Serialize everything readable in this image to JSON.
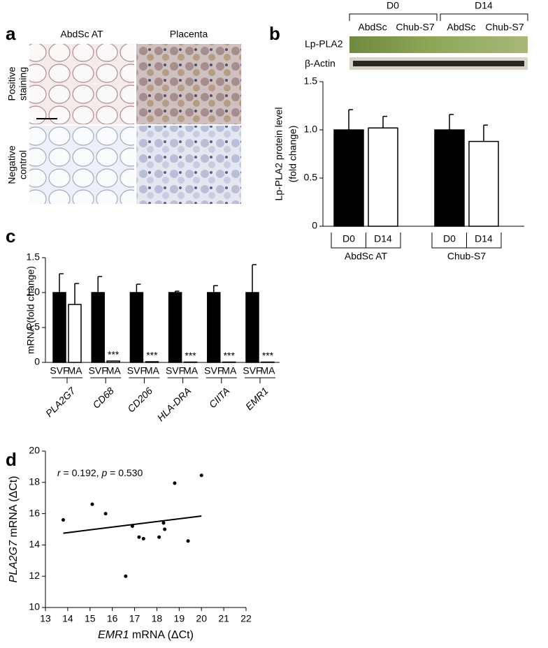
{
  "panels": {
    "letters": [
      "a",
      "b",
      "c",
      "d"
    ],
    "histology": {
      "col_labels": [
        "AbdSc AT",
        "Placenta"
      ],
      "row_labels": [
        [
          "Positive",
          "staining"
        ],
        [
          "Negative",
          "control"
        ]
      ]
    },
    "blot": {
      "day_labels": [
        "D0",
        "D14"
      ],
      "lane_labels": [
        "AbdSc",
        "Chub-S7",
        "AbdSc",
        "Chub-S7"
      ],
      "band_labels": [
        "Lp-PLA2",
        "β-Actin"
      ]
    }
  },
  "chart_data": [
    {
      "type": "bar",
      "ylabel": [
        "Lp-PLA2 protein level",
        "(fold change)"
      ],
      "categories": [
        "D0",
        "D14",
        "D0",
        "D14"
      ],
      "groups": [
        "AbdSc AT",
        "Chub-S7"
      ],
      "values": [
        1.0,
        1.02,
        1.0,
        0.88
      ],
      "errors": [
        0.21,
        0.12,
        0.16,
        0.17
      ],
      "colors": [
        "#000000",
        "#ffffff",
        "#000000",
        "#ffffff"
      ],
      "ylim": [
        0,
        1.5
      ],
      "yticks": [
        0,
        0.5,
        {
          "value": 1,
          "label": "1.0"
        },
        1.5
      ]
    },
    {
      "type": "bar",
      "ylabel": [
        "mRNA (fold change)"
      ],
      "categories": [
        "SVF",
        "MA",
        "SVF",
        "MA",
        "SVF",
        "MA",
        "SVF",
        "MA",
        "SVF",
        "MA",
        "SVF",
        "MA"
      ],
      "groups": [
        "PLA2G7",
        "CD68",
        "CD206",
        "HLA-DRA",
        "CIITA",
        "EMR1"
      ],
      "values": [
        1.0,
        0.83,
        1.0,
        0.02,
        1.0,
        0.01,
        1.0,
        0.005,
        1.0,
        0.005,
        1.0,
        0.005
      ],
      "errors": [
        0.27,
        0.3,
        0.23,
        null,
        0.12,
        null,
        0.02,
        null,
        0.1,
        null,
        0.4,
        null
      ],
      "annotations": [
        null,
        null,
        null,
        "***",
        null,
        "***",
        null,
        "***",
        null,
        "***",
        null,
        "***"
      ],
      "colors": [
        "#000000",
        "#ffffff",
        "#000000",
        "#ffffff",
        "#000000",
        "#ffffff",
        "#000000",
        "#ffffff",
        "#000000",
        "#ffffff",
        "#000000",
        "#ffffff"
      ],
      "ylim": [
        0,
        1.5
      ],
      "yticks": [
        0,
        0.5,
        {
          "value": 1,
          "label": "1.0"
        },
        1.5
      ]
    },
    {
      "type": "scatter",
      "color": "#000000",
      "annotation": [
        {
          "text": "r",
          "italic": true
        },
        {
          "text": " = 0.192, ",
          "italic": false
        },
        {
          "text": "p",
          "italic": true
        },
        {
          "text": " = 0.530",
          "italic": false
        }
      ],
      "xlabel": [
        {
          "text": "EMR1",
          "italic": true
        },
        {
          "text": " mRNA (ΔCt)",
          "italic": false
        }
      ],
      "ylabel": [
        {
          "text": "PLA2G7",
          "italic": true
        },
        {
          "text": " mRNA (ΔCt)",
          "italic": false
        }
      ],
      "x": [
        13.8,
        15.1,
        15.7,
        16.6,
        16.9,
        17.2,
        17.4,
        18.1,
        18.3,
        18.35,
        18.8,
        19.4,
        20.0
      ],
      "y": [
        15.6,
        16.6,
        16.0,
        12.0,
        15.2,
        14.5,
        14.4,
        14.5,
        15.4,
        15.0,
        17.95,
        14.25,
        18.45
      ],
      "fit": {
        "x": [
          13.8,
          20.0
        ],
        "y": [
          14.75,
          15.85
        ]
      },
      "xlim": [
        13,
        22
      ],
      "xticks": [
        13,
        14,
        15,
        16,
        17,
        18,
        19,
        20,
        21,
        22
      ],
      "ylim": [
        10,
        20
      ],
      "yticks": [
        10,
        12,
        14,
        16,
        18,
        20
      ]
    }
  ]
}
